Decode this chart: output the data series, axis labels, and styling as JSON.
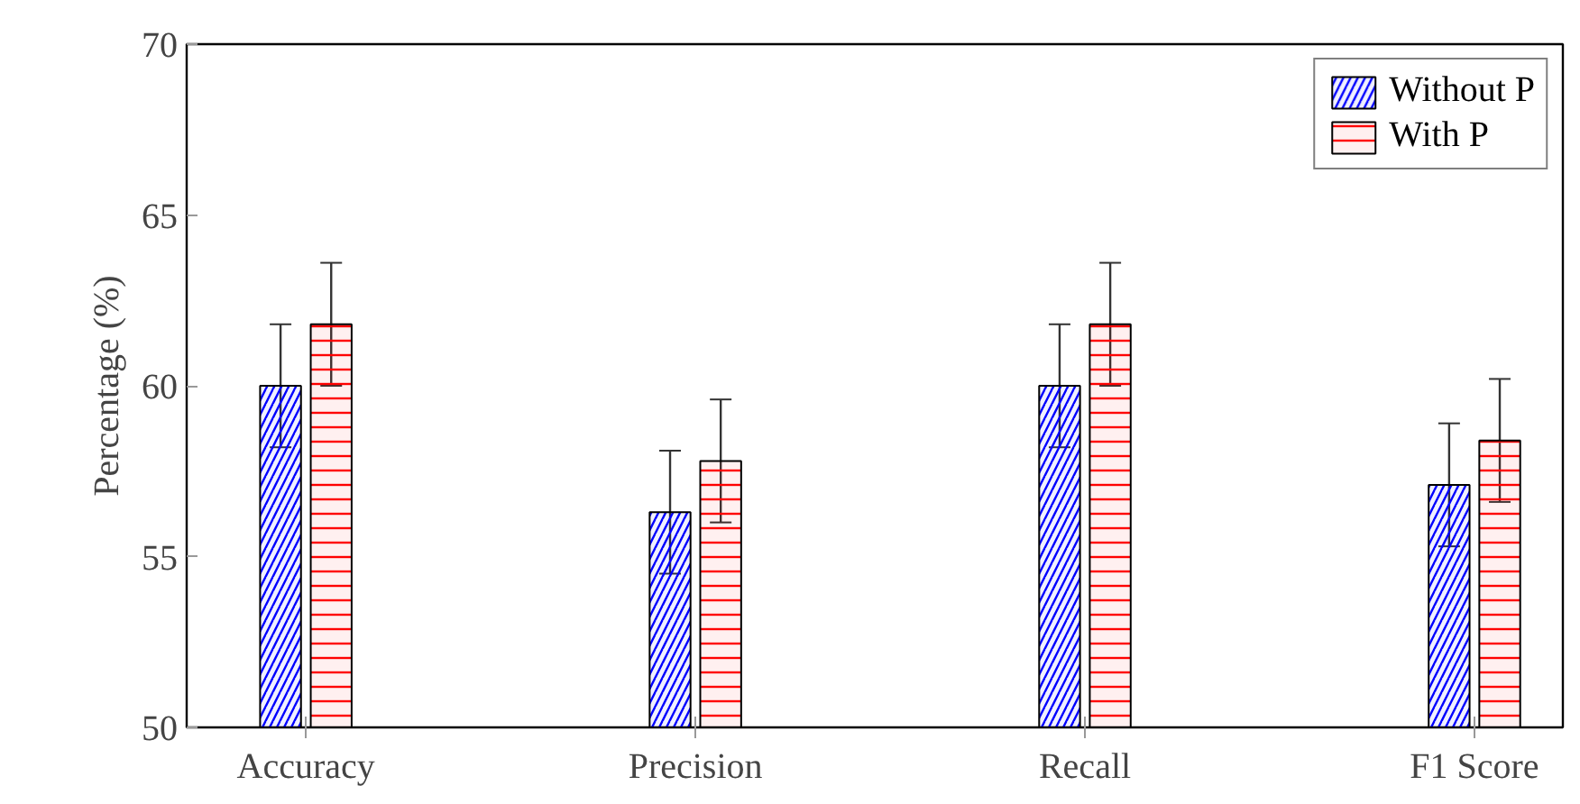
{
  "chart_data": {
    "type": "bar",
    "ylabel": "Percentage (%)",
    "categories": [
      "Accuracy",
      "Precision",
      "Recall",
      "F1 Score"
    ],
    "series": [
      {
        "name": "Without P",
        "color": "#0000ff",
        "values": [
          60.0,
          56.3,
          60.0,
          57.1
        ],
        "errors": [
          1.8,
          1.8,
          1.8,
          1.8
        ]
      },
      {
        "name": "With P",
        "color": "#ff0000",
        "values": [
          61.8,
          57.8,
          61.8,
          58.4
        ],
        "errors": [
          1.8,
          1.8,
          1.8,
          1.8
        ]
      }
    ],
    "ylim": [
      50,
      70
    ],
    "yticks": [
      50,
      55,
      60,
      65,
      70
    ],
    "grid": false,
    "legend": "top right"
  }
}
